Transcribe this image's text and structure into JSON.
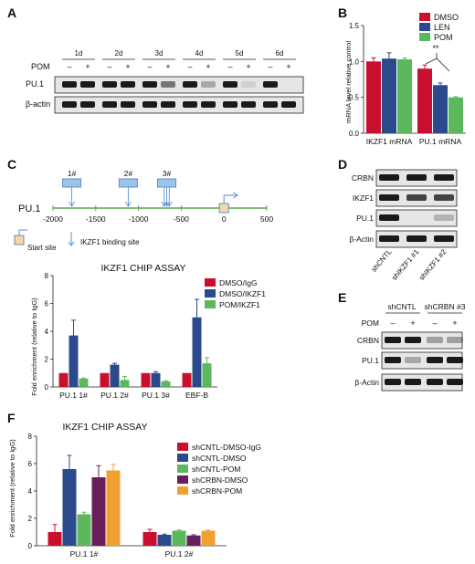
{
  "panels": {
    "A": {
      "letter": "A",
      "days": [
        "1d",
        "2d",
        "3d",
        "4d",
        "5d",
        "6d"
      ],
      "pom_label": "POM",
      "signs": [
        "–",
        "+"
      ],
      "rows": [
        "PU.1",
        "β-actin"
      ]
    },
    "B": {
      "letter": "B",
      "ylabel": "mRNA level relative control",
      "sig": "**",
      "chart_data": {
        "type": "bar",
        "categories": [
          "IKZF1 mRNA",
          "PU.1 mRNA"
        ],
        "ylim": [
          0,
          1.5
        ],
        "yticks": [
          "0.0",
          "0.5",
          "1.0",
          "1.5"
        ],
        "series": [
          {
            "name": "DMSO",
            "color": "#c8102e",
            "values": [
              1.0,
              0.9
            ],
            "errors": [
              0.05,
              0.05
            ]
          },
          {
            "name": "LEN",
            "color": "#2b4a8b",
            "values": [
              1.04,
              0.67
            ],
            "errors": [
              0.08,
              0.03
            ]
          },
          {
            "name": "POM",
            "color": "#5cb85c",
            "values": [
              1.03,
              0.5
            ],
            "errors": [
              0.02,
              0.01
            ]
          }
        ],
        "legend": "top-right"
      }
    },
    "C": {
      "letter": "C",
      "gene": "PU.1",
      "sites": [
        "1#",
        "2#",
        "3#"
      ],
      "axis_ticks": [
        "-2000",
        "-1500",
        "-1000",
        "-500",
        "0",
        "500"
      ],
      "legend_start": "Start site",
      "legend_binding": "IKZF1 binding site",
      "chip_title": "IKZF1 CHIP ASSAY",
      "ylabel": "Fold enrichment (relative to IgG)",
      "chart_data": {
        "type": "bar",
        "categories": [
          "PU.1 1#",
          "PU.1 2#",
          "PU.1 3#",
          "EBF-B"
        ],
        "ylim": [
          0,
          8
        ],
        "yticks": [
          "0",
          "2",
          "4",
          "6",
          "8"
        ],
        "series": [
          {
            "name": "DMSO/IgG",
            "color": "#c8102e",
            "values": [
              1,
              1,
              1,
              1
            ],
            "errors": [
              0,
              0,
              0,
              0
            ]
          },
          {
            "name": "DMSO/IKZF1",
            "color": "#2b4a8b",
            "values": [
              3.7,
              1.6,
              1.0,
              5.0
            ],
            "errors": [
              1.1,
              0.1,
              0.1,
              1.3
            ]
          },
          {
            "name": "POM/IKZF1",
            "color": "#5cb85c",
            "values": [
              0.6,
              0.5,
              0.4,
              1.7
            ],
            "errors": [
              0.05,
              0.25,
              0.05,
              0.4
            ]
          }
        ],
        "legend": "top-right"
      }
    },
    "D": {
      "letter": "D",
      "rows": [
        "CRBN",
        "IKZF1",
        "PU.1",
        "β-Actin"
      ],
      "lanes": [
        "shCNTL",
        "shIKZF1 #1",
        "shIKZF1 #2"
      ]
    },
    "E": {
      "letter": "E",
      "groups": [
        "shCNTL",
        "shCRBN #3"
      ],
      "pom_label": "POM",
      "signs": [
        "–",
        "+",
        "–",
        "+"
      ],
      "rows": [
        "CRBN",
        "PU.1",
        "β-Actin"
      ]
    },
    "F": {
      "letter": "F",
      "chip_title": "IKZF1 CHIP ASSAY",
      "ylabel": "Fold enrichment (relative to IgG)",
      "chart_data": {
        "type": "bar",
        "categories": [
          "PU.1 1#",
          "PU.1 2#"
        ],
        "ylim": [
          0,
          8
        ],
        "yticks": [
          "0",
          "2",
          "4",
          "6",
          "8"
        ],
        "series": [
          {
            "name": "shCNTL-DMSO-IgG",
            "color": "#c8102e",
            "values": [
              1.0,
              1.0
            ],
            "errors": [
              0.55,
              0.2
            ]
          },
          {
            "name": "shCNTL-DMSO",
            "color": "#2b4a8b",
            "values": [
              5.6,
              0.8
            ],
            "errors": [
              1.0,
              0.05
            ]
          },
          {
            "name": "shCNTL-POM",
            "color": "#5cb85c",
            "values": [
              2.3,
              1.1
            ],
            "errors": [
              0.15,
              0.05
            ]
          },
          {
            "name": "shCRBN-DMSO",
            "color": "#6b1f5a",
            "values": [
              5.0,
              0.75
            ],
            "errors": [
              0.85,
              0.05
            ]
          },
          {
            "name": "shCRBN-POM",
            "color": "#f0a030",
            "values": [
              5.5,
              1.1
            ],
            "errors": [
              0.45,
              0.05
            ]
          }
        ],
        "legend": "top-right"
      }
    }
  }
}
